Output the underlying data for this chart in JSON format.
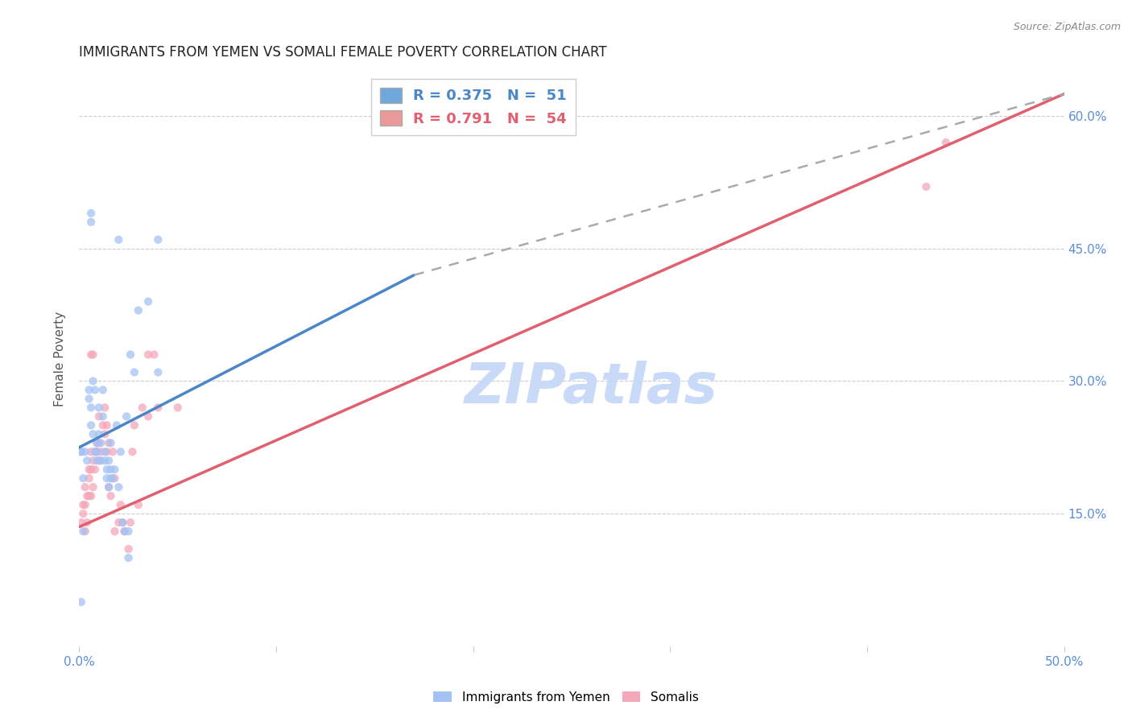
{
  "title": "IMMIGRANTS FROM YEMEN VS SOMALI FEMALE POVERTY CORRELATION CHART",
  "source": "Source: ZipAtlas.com",
  "ylabel_label": "Female Poverty",
  "x_min": 0.0,
  "x_max": 0.5,
  "y_min": 0.0,
  "y_max": 0.65,
  "x_ticks": [
    0.0,
    0.1,
    0.2,
    0.3,
    0.4,
    0.5
  ],
  "x_tick_labels": [
    "0.0%",
    "",
    "",
    "",
    "",
    "50.0%"
  ],
  "y_ticks": [
    0.0,
    0.15,
    0.3,
    0.45,
    0.6
  ],
  "y_tick_labels": [
    "",
    "15.0%",
    "30.0%",
    "45.0%",
    "60.0%"
  ],
  "legend_color1": "#6fa8dc",
  "legend_color2": "#ea9999",
  "watermark": "ZIPatlas",
  "watermark_color": "#c9daf8",
  "blue_color": "#4a86c8",
  "pink_color": "#e06070",
  "blue_scatter_color": "#a4c2f4",
  "pink_scatter_color": "#f4a7b9",
  "right_axis_color": "#5b8dd9",
  "blue_line_x": [
    0.0,
    0.17
  ],
  "blue_line_y": [
    0.225,
    0.42
  ],
  "pink_line_x": [
    0.0,
    0.5
  ],
  "pink_line_y": [
    0.135,
    0.625
  ],
  "dashed_line_x": [
    0.17,
    0.5
  ],
  "dashed_line_y": [
    0.42,
    0.625
  ],
  "yemen_data": [
    [
      0.001,
      0.22
    ],
    [
      0.001,
      0.22
    ],
    [
      0.001,
      0.05
    ],
    [
      0.002,
      0.19
    ],
    [
      0.002,
      0.13
    ],
    [
      0.003,
      0.22
    ],
    [
      0.004,
      0.21
    ],
    [
      0.005,
      0.28
    ],
    [
      0.005,
      0.29
    ],
    [
      0.006,
      0.25
    ],
    [
      0.006,
      0.27
    ],
    [
      0.006,
      0.48
    ],
    [
      0.006,
      0.49
    ],
    [
      0.007,
      0.24
    ],
    [
      0.007,
      0.3
    ],
    [
      0.008,
      0.22
    ],
    [
      0.008,
      0.29
    ],
    [
      0.009,
      0.21
    ],
    [
      0.009,
      0.22
    ],
    [
      0.009,
      0.23
    ],
    [
      0.01,
      0.24
    ],
    [
      0.01,
      0.27
    ],
    [
      0.011,
      0.21
    ],
    [
      0.011,
      0.23
    ],
    [
      0.012,
      0.26
    ],
    [
      0.012,
      0.29
    ],
    [
      0.013,
      0.21
    ],
    [
      0.013,
      0.22
    ],
    [
      0.014,
      0.19
    ],
    [
      0.014,
      0.2
    ],
    [
      0.015,
      0.18
    ],
    [
      0.015,
      0.21
    ],
    [
      0.016,
      0.19
    ],
    [
      0.016,
      0.2
    ],
    [
      0.016,
      0.23
    ],
    [
      0.017,
      0.19
    ],
    [
      0.018,
      0.2
    ],
    [
      0.019,
      0.25
    ],
    [
      0.02,
      0.18
    ],
    [
      0.02,
      0.46
    ],
    [
      0.021,
      0.22
    ],
    [
      0.022,
      0.14
    ],
    [
      0.023,
      0.13
    ],
    [
      0.024,
      0.26
    ],
    [
      0.025,
      0.13
    ],
    [
      0.025,
      0.1
    ],
    [
      0.026,
      0.33
    ],
    [
      0.028,
      0.31
    ],
    [
      0.03,
      0.38
    ],
    [
      0.035,
      0.39
    ],
    [
      0.04,
      0.31
    ],
    [
      0.04,
      0.46
    ]
  ],
  "somali_data": [
    [
      0.001,
      0.14
    ],
    [
      0.002,
      0.15
    ],
    [
      0.002,
      0.16
    ],
    [
      0.003,
      0.13
    ],
    [
      0.003,
      0.16
    ],
    [
      0.003,
      0.18
    ],
    [
      0.004,
      0.14
    ],
    [
      0.004,
      0.17
    ],
    [
      0.005,
      0.17
    ],
    [
      0.005,
      0.19
    ],
    [
      0.005,
      0.2
    ],
    [
      0.006,
      0.17
    ],
    [
      0.006,
      0.2
    ],
    [
      0.006,
      0.22
    ],
    [
      0.006,
      0.33
    ],
    [
      0.007,
      0.18
    ],
    [
      0.007,
      0.21
    ],
    [
      0.007,
      0.33
    ],
    [
      0.008,
      0.2
    ],
    [
      0.008,
      0.22
    ],
    [
      0.009,
      0.22
    ],
    [
      0.009,
      0.23
    ],
    [
      0.01,
      0.21
    ],
    [
      0.01,
      0.23
    ],
    [
      0.01,
      0.26
    ],
    [
      0.011,
      0.22
    ],
    [
      0.012,
      0.25
    ],
    [
      0.013,
      0.24
    ],
    [
      0.013,
      0.27
    ],
    [
      0.014,
      0.22
    ],
    [
      0.014,
      0.25
    ],
    [
      0.015,
      0.18
    ],
    [
      0.015,
      0.23
    ],
    [
      0.016,
      0.17
    ],
    [
      0.017,
      0.22
    ],
    [
      0.018,
      0.13
    ],
    [
      0.018,
      0.19
    ],
    [
      0.02,
      0.14
    ],
    [
      0.021,
      0.16
    ],
    [
      0.022,
      0.14
    ],
    [
      0.023,
      0.13
    ],
    [
      0.025,
      0.11
    ],
    [
      0.026,
      0.14
    ],
    [
      0.027,
      0.22
    ],
    [
      0.028,
      0.25
    ],
    [
      0.03,
      0.16
    ],
    [
      0.032,
      0.27
    ],
    [
      0.035,
      0.26
    ],
    [
      0.035,
      0.33
    ],
    [
      0.038,
      0.33
    ],
    [
      0.04,
      0.27
    ],
    [
      0.05,
      0.27
    ],
    [
      0.43,
      0.52
    ],
    [
      0.44,
      0.57
    ]
  ]
}
